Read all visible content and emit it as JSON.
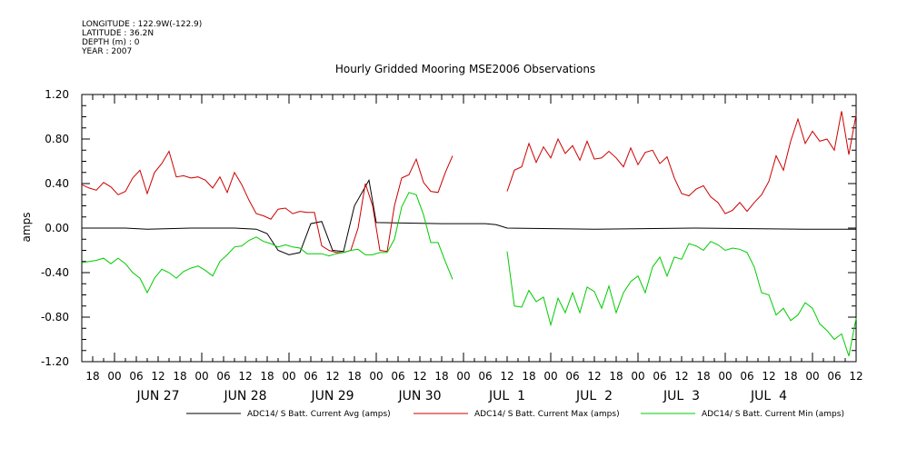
{
  "header": {
    "longitude": "LONGITUDE : 122.9W(-122.9)",
    "latitude": "LATITUDE : 36.2N",
    "depth": "DEPTH (m) : 0",
    "year": "YEAR : 2007"
  },
  "chart_data": {
    "type": "line",
    "title": "Hourly Gridded Mooring MSE2006 Observations",
    "ylabel": "amps",
    "xlabel": "",
    "ylim": [
      -1.2,
      1.2
    ],
    "yticks": [
      "1.20",
      "0.80",
      "0.40",
      "0.00",
      "-0.40",
      "-0.80",
      "-1.20"
    ],
    "xlim_hours": [
      -9,
      204
    ],
    "x_unit": "hours since 2007-06-27 00:00",
    "hour_tick_labels": [
      "18",
      "00",
      "06",
      "12",
      "18",
      "00",
      "06",
      "12",
      "18",
      "00",
      "06",
      "12",
      "18",
      "00",
      "06",
      "12",
      "18",
      "00",
      "06",
      "12",
      "18",
      "00",
      "06",
      "12",
      "18",
      "00",
      "06",
      "12",
      "18",
      "00",
      "06",
      "12",
      "18",
      "00",
      "06",
      "12"
    ],
    "day_labels": [
      "JUN 27",
      "JUN 28",
      "JUN 29",
      "JUN 30",
      "JUL  1",
      "JUL  2",
      "JUL  3",
      "JUL  4"
    ],
    "grid": false,
    "legend_placement": "bottom",
    "series": [
      {
        "name": "ADC14/ S Batt. Current Avg (amps)",
        "color": "#000000",
        "segments": [
          {
            "x": [
              -9,
              3,
              9,
              21,
              33,
              39,
              42,
              45,
              48,
              51,
              54,
              57,
              60,
              63,
              66,
              70,
              72,
              90,
              102,
              105,
              108,
              132,
              160,
              190,
              204
            ],
            "y": [
              0.0,
              0.0,
              -0.01,
              0.0,
              0.0,
              -0.01,
              -0.05,
              -0.2,
              -0.24,
              -0.22,
              0.04,
              0.06,
              -0.2,
              -0.21,
              0.2,
              0.43,
              0.05,
              0.04,
              0.04,
              0.03,
              0.0,
              -0.01,
              0.0,
              -0.01,
              -0.01
            ]
          }
        ]
      },
      {
        "name": "ADC14/ S Batt. Current Max (amps)",
        "color": "#cc0000",
        "segments": [
          {
            "x": [
              -9,
              -7,
              -5,
              -3,
              -1,
              1,
              3,
              5,
              7,
              9,
              11,
              13,
              15,
              17,
              19,
              21,
              23,
              25,
              27,
              29,
              31,
              33,
              35,
              37,
              39,
              41,
              43,
              45,
              47,
              49,
              51,
              53,
              55,
              57,
              59,
              61,
              63,
              65,
              67,
              69,
              71,
              73,
              75
            ],
            "y": [
              0.39,
              0.36,
              0.34,
              0.41,
              0.37,
              0.3,
              0.33,
              0.45,
              0.52,
              0.31,
              0.5,
              0.58,
              0.69,
              0.46,
              0.47,
              0.45,
              0.46,
              0.43,
              0.36,
              0.46,
              0.32,
              0.5,
              0.39,
              0.25,
              0.13,
              0.11,
              0.08,
              0.17,
              0.18,
              0.13,
              0.15,
              0.14,
              0.14,
              -0.16,
              -0.2,
              -0.22,
              -0.22,
              -0.2,
              0.0,
              0.4,
              0.2,
              -0.2,
              -0.21
            ]
          },
          {
            "x": [
              75,
              77,
              79,
              81,
              83,
              85,
              87,
              89,
              91,
              93
            ],
            "y": [
              -0.21,
              0.2,
              0.45,
              0.48,
              0.62,
              0.41,
              0.33,
              0.32,
              0.5,
              0.65
            ]
          },
          {
            "x": [
              108,
              110,
              112,
              114,
              116,
              118,
              120,
              122,
              124,
              126,
              128,
              130,
              132,
              134,
              136,
              138,
              140,
              142,
              144,
              146,
              148,
              150,
              152,
              154,
              156,
              158,
              160,
              162,
              164,
              166,
              168,
              170,
              172,
              174,
              176,
              178,
              180,
              182,
              184,
              186,
              188,
              190,
              192,
              194,
              196,
              198,
              200,
              202,
              204
            ],
            "y": [
              0.33,
              0.52,
              0.55,
              0.76,
              0.59,
              0.73,
              0.63,
              0.8,
              0.67,
              0.74,
              0.61,
              0.78,
              0.62,
              0.63,
              0.69,
              0.63,
              0.55,
              0.72,
              0.57,
              0.68,
              0.7,
              0.58,
              0.64,
              0.45,
              0.31,
              0.29,
              0.35,
              0.38,
              0.28,
              0.23,
              0.13,
              0.16,
              0.23,
              0.15,
              0.23,
              0.3,
              0.42,
              0.65,
              0.52,
              0.78,
              0.98,
              0.76,
              0.87,
              0.78,
              0.8,
              0.7,
              1.05,
              0.66,
              1.02
            ]
          }
        ]
      },
      {
        "name": "ADC14/ S Batt. Current Min (amps)",
        "color": "#00cc00",
        "segments": [
          {
            "x": [
              -9,
              -7,
              -5,
              -3,
              -1,
              1,
              3,
              5,
              7,
              9,
              11,
              13,
              15,
              17,
              19,
              21,
              23,
              25,
              27,
              29,
              31,
              33,
              35,
              37,
              39,
              41,
              43,
              45,
              47,
              49,
              51,
              53,
              55,
              57,
              59,
              61,
              63,
              65,
              67,
              69,
              71,
              73,
              75
            ],
            "y": [
              -0.31,
              -0.3,
              -0.29,
              -0.27,
              -0.32,
              -0.27,
              -0.32,
              -0.4,
              -0.45,
              -0.58,
              -0.45,
              -0.37,
              -0.4,
              -0.45,
              -0.39,
              -0.36,
              -0.34,
              -0.38,
              -0.43,
              -0.3,
              -0.24,
              -0.17,
              -0.16,
              -0.11,
              -0.08,
              -0.12,
              -0.14,
              -0.17,
              -0.15,
              -0.17,
              -0.18,
              -0.23,
              -0.23,
              -0.23,
              -0.25,
              -0.23,
              -0.22,
              -0.2,
              -0.19,
              -0.24,
              -0.24,
              -0.22,
              -0.22
            ]
          },
          {
            "x": [
              75,
              77,
              79,
              81,
              83,
              85,
              87,
              89,
              91,
              93
            ],
            "y": [
              -0.22,
              -0.1,
              0.19,
              0.32,
              0.3,
              0.12,
              -0.13,
              -0.13,
              -0.3,
              -0.46
            ]
          },
          {
            "x": [
              108,
              110,
              112,
              114,
              116,
              118,
              120,
              122,
              124,
              126,
              128,
              130,
              132,
              134,
              136,
              138,
              140,
              142,
              144,
              146,
              148,
              150,
              152,
              154,
              156,
              158,
              160,
              162,
              164,
              166,
              168,
              170,
              172,
              174,
              176,
              178,
              180,
              182,
              184,
              186,
              188,
              190,
              192,
              194,
              196,
              198,
              200,
              202,
              204
            ],
            "y": [
              -0.21,
              -0.7,
              -0.71,
              -0.56,
              -0.66,
              -0.62,
              -0.87,
              -0.63,
              -0.76,
              -0.58,
              -0.76,
              -0.53,
              -0.57,
              -0.72,
              -0.52,
              -0.76,
              -0.58,
              -0.48,
              -0.43,
              -0.58,
              -0.35,
              -0.26,
              -0.43,
              -0.26,
              -0.28,
              -0.14,
              -0.16,
              -0.2,
              -0.12,
              -0.15,
              -0.2,
              -0.18,
              -0.19,
              -0.22,
              -0.35,
              -0.58,
              -0.6,
              -0.78,
              -0.72,
              -0.83,
              -0.78,
              -0.67,
              -0.72,
              -0.86,
              -0.92,
              -1.0,
              -0.95,
              -1.15,
              -0.81
            ]
          }
        ]
      }
    ]
  }
}
